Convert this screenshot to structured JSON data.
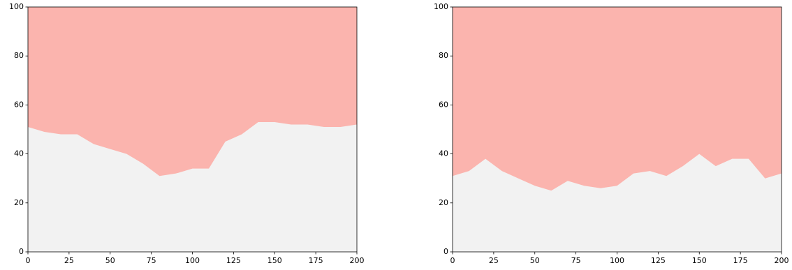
{
  "chart_data": [
    {
      "type": "area",
      "x": [
        0,
        10,
        20,
        30,
        40,
        50,
        60,
        70,
        80,
        90,
        100,
        110,
        120,
        130,
        140,
        150,
        160,
        170,
        180,
        190,
        200
      ],
      "values": [
        51,
        49,
        48,
        48,
        44,
        42,
        40,
        36,
        31,
        32,
        34,
        34,
        45,
        48,
        53,
        53,
        52,
        52,
        51,
        51,
        52
      ],
      "color": "#f2f2f2",
      "background_color": "#fbb4ae",
      "xlim": [
        0,
        200
      ],
      "ylim": [
        0,
        100
      ],
      "xticks": [
        0,
        25,
        50,
        75,
        100,
        125,
        150,
        175,
        200
      ],
      "yticks": [
        0,
        20,
        40,
        60,
        80,
        100
      ]
    },
    {
      "type": "area",
      "x": [
        0,
        10,
        20,
        30,
        40,
        50,
        60,
        70,
        80,
        90,
        100,
        110,
        120,
        130,
        140,
        150,
        160,
        170,
        180,
        190,
        200
      ],
      "values": [
        31,
        33,
        38,
        33,
        30,
        27,
        25,
        29,
        27,
        26,
        27,
        32,
        33,
        31,
        35,
        40,
        35,
        38,
        38,
        30,
        32
      ],
      "color": "#f2f2f2",
      "background_color": "#fbb4ae",
      "xlim": [
        0,
        200
      ],
      "ylim": [
        0,
        100
      ],
      "xticks": [
        0,
        25,
        50,
        75,
        100,
        125,
        150,
        175,
        200
      ],
      "yticks": [
        0,
        20,
        40,
        60,
        80,
        100
      ]
    }
  ]
}
